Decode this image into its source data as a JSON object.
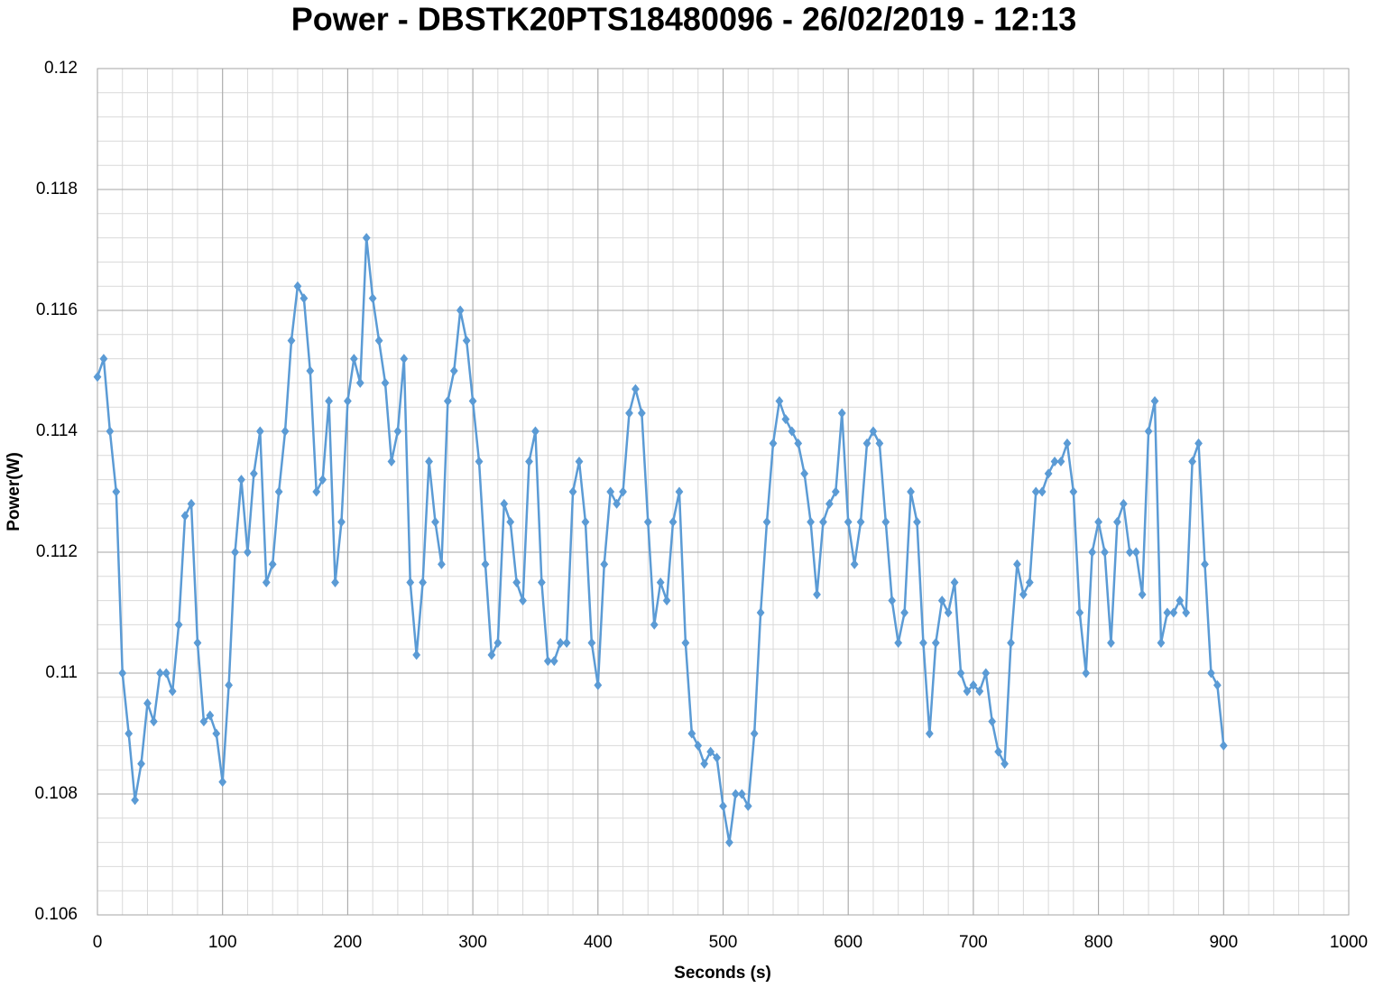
{
  "chart_data": {
    "type": "line",
    "title": "Power - DBSTK20PTS18480096 - 26/02/2019 - 12:13",
    "xlabel": "Seconds (s)",
    "ylabel": "Power(W)",
    "x": [
      0,
      5,
      10,
      15,
      20,
      25,
      30,
      35,
      40,
      45,
      50,
      55,
      60,
      65,
      70,
      75,
      80,
      85,
      90,
      95,
      100,
      105,
      110,
      115,
      120,
      125,
      130,
      135,
      140,
      145,
      150,
      155,
      160,
      165,
      170,
      175,
      180,
      185,
      190,
      195,
      200,
      205,
      210,
      215,
      220,
      225,
      230,
      235,
      240,
      245,
      250,
      255,
      260,
      265,
      270,
      275,
      280,
      285,
      290,
      295,
      300,
      305,
      310,
      315,
      320,
      325,
      330,
      335,
      340,
      345,
      350,
      355,
      360,
      365,
      370,
      375,
      380,
      385,
      390,
      395,
      400,
      405,
      410,
      415,
      420,
      425,
      430,
      435,
      440,
      445,
      450,
      455,
      460,
      465,
      470,
      475,
      480,
      485,
      490,
      495,
      500,
      505,
      510,
      515,
      520,
      525,
      530,
      535,
      540,
      545,
      550,
      555,
      560,
      565,
      570,
      575,
      580,
      585,
      590,
      595,
      600,
      605,
      610,
      615,
      620,
      625,
      630,
      635,
      640,
      645,
      650,
      655,
      660,
      665,
      670,
      675,
      680,
      685,
      690,
      695,
      700,
      705,
      710,
      715,
      720,
      725,
      730,
      735,
      740,
      745,
      750,
      755,
      760,
      765,
      770,
      775,
      780,
      785,
      790,
      795,
      800,
      805,
      810,
      815,
      820,
      825,
      830,
      835,
      840,
      845,
      850,
      855,
      860,
      865,
      870,
      875,
      880,
      885,
      890,
      895,
      900
    ],
    "series": [
      {
        "name": "Power(W)",
        "color": "#5b9bd5",
        "values": [
          0.1149,
          0.1152,
          0.114,
          0.113,
          0.11,
          0.109,
          0.1079,
          0.1085,
          0.1095,
          0.1092,
          0.11,
          0.11,
          0.1097,
          0.1108,
          0.1126,
          0.1128,
          0.1105,
          0.1092,
          0.1093,
          0.109,
          0.1082,
          0.1098,
          0.112,
          0.1132,
          0.112,
          0.1133,
          0.114,
          0.1115,
          0.1118,
          0.113,
          0.114,
          0.1155,
          0.1164,
          0.1162,
          0.115,
          0.113,
          0.1132,
          0.1145,
          0.1115,
          0.1125,
          0.1145,
          0.1152,
          0.1148,
          0.1172,
          0.1162,
          0.1155,
          0.1148,
          0.1135,
          0.114,
          0.1152,
          0.1115,
          0.1103,
          0.1115,
          0.1135,
          0.1125,
          0.1118,
          0.1145,
          0.115,
          0.116,
          0.1155,
          0.1145,
          0.1135,
          0.1118,
          0.1103,
          0.1105,
          0.1128,
          0.1125,
          0.1115,
          0.1112,
          0.1135,
          0.114,
          0.1115,
          0.1102,
          0.1102,
          0.1105,
          0.1105,
          0.113,
          0.1135,
          0.1125,
          0.1105,
          0.1098,
          0.1118,
          0.113,
          0.1128,
          0.113,
          0.1143,
          0.1147,
          0.1143,
          0.1125,
          0.1108,
          0.1115,
          0.1112,
          0.1125,
          0.113,
          0.1105,
          0.109,
          0.1088,
          0.1085,
          0.1087,
          0.1086,
          0.1078,
          0.1072,
          0.108,
          0.108,
          0.1078,
          0.109,
          0.111,
          0.1125,
          0.1138,
          0.1145,
          0.1142,
          0.114,
          0.1138,
          0.1133,
          0.1125,
          0.1113,
          0.1125,
          0.1128,
          0.113,
          0.1143,
          0.1125,
          0.1118,
          0.1125,
          0.1138,
          0.114,
          0.1138,
          0.1125,
          0.1112,
          0.1105,
          0.111,
          0.113,
          0.1125,
          0.1105,
          0.109,
          0.1105,
          0.1112,
          0.111,
          0.1115,
          0.11,
          0.1097,
          0.1098,
          0.1097,
          0.11,
          0.1092,
          0.1087,
          0.1085,
          0.1105,
          0.1118,
          0.1113,
          0.1115,
          0.113,
          0.113,
          0.1133,
          0.1135,
          0.1135,
          0.1138,
          0.113,
          0.111,
          0.11,
          0.112,
          0.1125,
          0.112,
          0.1105,
          0.1125,
          0.1128,
          0.112,
          0.112,
          0.1113,
          0.114,
          0.1145,
          0.1105,
          0.111,
          0.111,
          0.1112,
          0.111,
          0.1135,
          0.1138,
          0.1118,
          0.11,
          0.1098,
          0.1088
        ]
      }
    ],
    "xlim": [
      0,
      1000
    ],
    "xticks": [
      0,
      100,
      200,
      300,
      400,
      500,
      600,
      700,
      800,
      900,
      1000
    ],
    "ylim": [
      0.106,
      0.12
    ],
    "yticks": [
      0.106,
      0.108,
      0.11,
      0.112,
      0.114,
      0.116,
      0.118,
      0.12
    ],
    "grid": true,
    "minor_grid": {
      "x": 20,
      "y": 0.0004
    },
    "marker": "diamond"
  }
}
